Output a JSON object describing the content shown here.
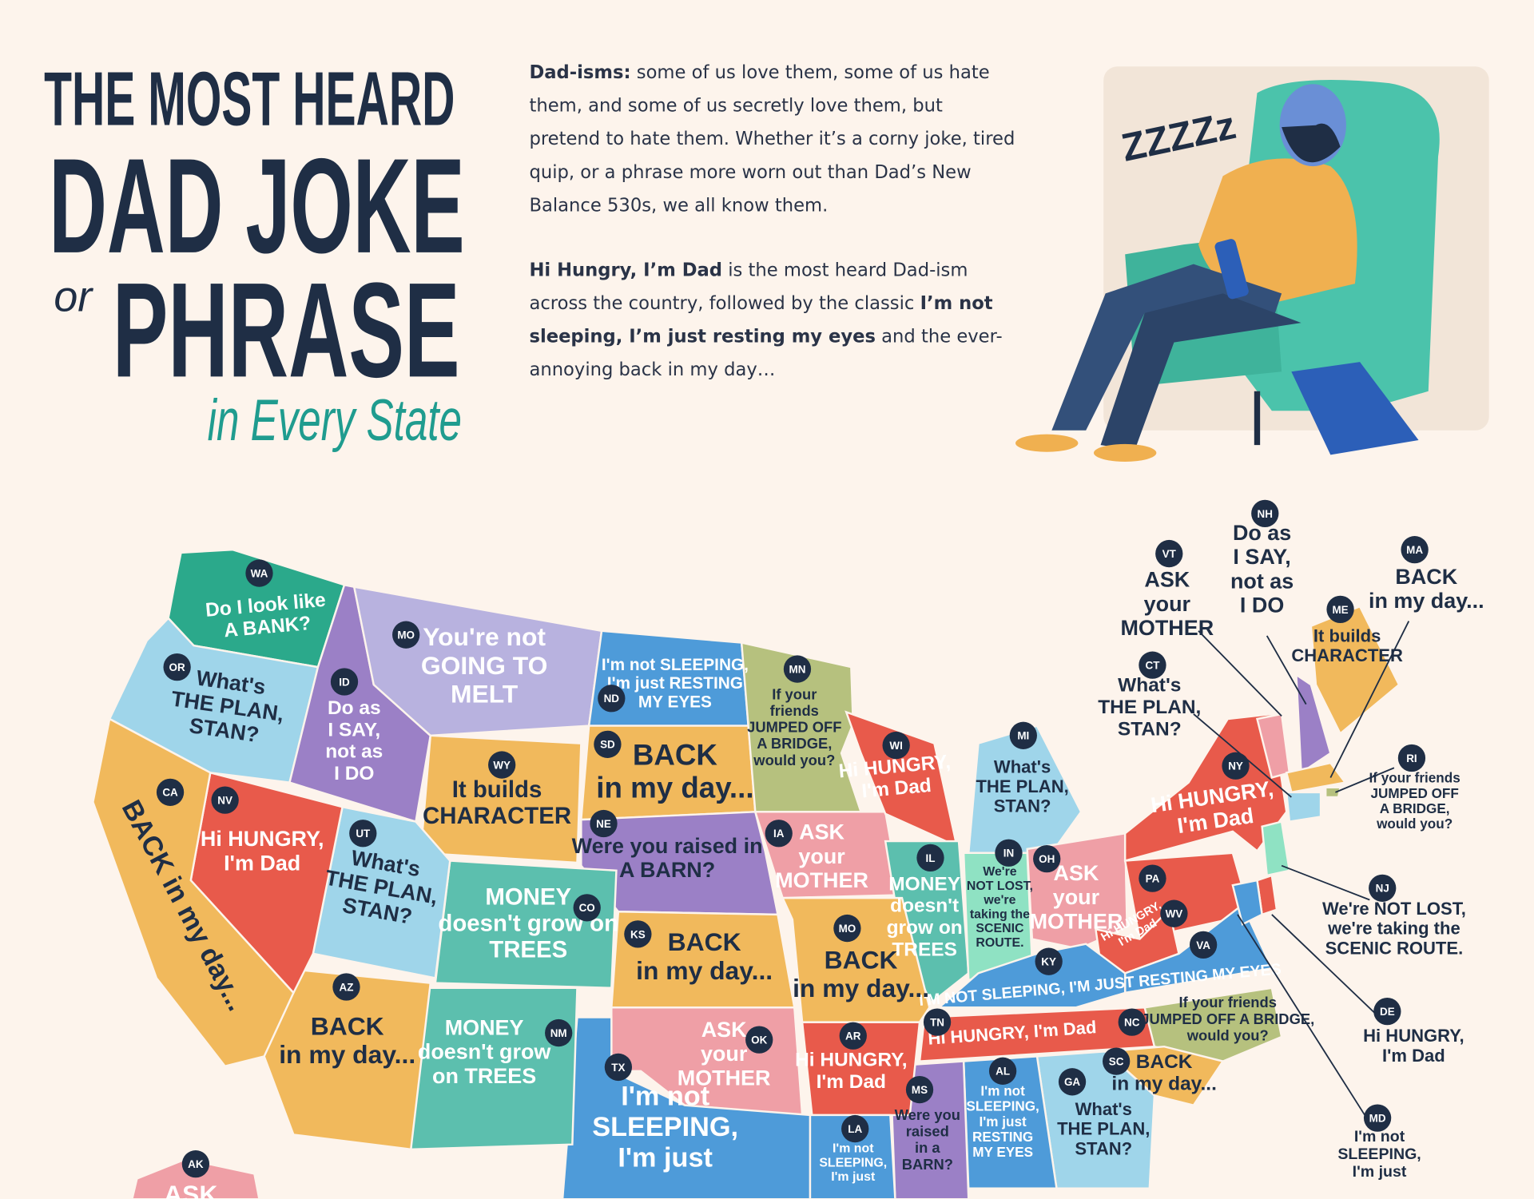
{
  "header": {
    "title": [
      "THE MOST HEARD",
      "DAD JOKE",
      "or",
      "PHRASE",
      "in Every State"
    ],
    "intro": [
      [
        {
          "bold": true,
          "text": "Dad-isms:"
        },
        {
          "bold": false,
          "text": " some of us love them, some of us hate them, and some of us secretly love them, but pretend to hate them. Whether it’s a corny joke, tired quip, or a phrase more worn out than Dad’s New Balance 530s, we all know them."
        }
      ],
      [
        {
          "bold": true,
          "text": "Hi Hungry, I’m Dad"
        },
        {
          "bold": false,
          "text": " is the most heard Dad-ism across the country, followed by the classic "
        },
        {
          "bold": true,
          "text": "I’m not sleeping, I’m just resting my eyes"
        },
        {
          "bold": false,
          "text": " and the ever-annoying back in my day…"
        }
      ]
    ]
  },
  "illustration": {
    "zzz": "ZZZZz"
  },
  "map": {
    "states": [
      {
        "abbr": "WA",
        "color": "#2ba98b",
        "lines": [
          "Do I look like",
          "A BANK?"
        ]
      },
      {
        "abbr": "OR",
        "color": "#9fd5ea",
        "lines": [
          "What's",
          "THE PLAN,",
          "STAN?"
        ]
      },
      {
        "abbr": "ID",
        "color": "#9b80c6",
        "lines": [
          "Do as",
          "I SAY,",
          "not as",
          "I DO"
        ]
      },
      {
        "abbr": "MO",
        "color": "#b8b2df",
        "lines": [
          "You're not",
          "GOING TO",
          "MELT"
        ]
      },
      {
        "abbr": "ND",
        "color": "#4e9bd9",
        "lines": [
          "I'm not SLEEPING,",
          "I'm just RESTING",
          "MY EYES"
        ]
      },
      {
        "abbr": "SD",
        "color": "#f1b95c",
        "lines": [
          "BACK",
          "in my day..."
        ]
      },
      {
        "abbr": "MN",
        "color": "#b6c17e",
        "lines": [
          "If your",
          "friends",
          "JUMPED OFF",
          "A BRIDGE,",
          "would you?"
        ]
      },
      {
        "abbr": "WY",
        "color": "#f1b95c",
        "lines": [
          "It builds",
          "CHARACTER"
        ]
      },
      {
        "abbr": "NE",
        "color": "#9b80c6",
        "lines": [
          "Were you raised in",
          "A BARN?"
        ]
      },
      {
        "abbr": "IA",
        "color": "#ef9fa6",
        "lines": [
          "ASK",
          "your",
          "MOTHER"
        ]
      },
      {
        "abbr": "WI",
        "color": "#e85a4b",
        "lines": [
          "Hi HUNGRY,",
          "I'm Dad"
        ]
      },
      {
        "abbr": "MI",
        "color": "#9fd5ea",
        "lines": [
          "What's",
          "THE PLAN,",
          "STAN?"
        ]
      },
      {
        "abbr": "IL",
        "color": "#5cbfae",
        "lines": [
          "MONEY",
          "doesn't",
          "grow on",
          "TREES"
        ]
      },
      {
        "abbr": "IN",
        "color": "#8fe2c3",
        "lines": [
          "We're",
          "NOT LOST,",
          "we're",
          "taking the",
          "SCENIC",
          "ROUTE."
        ]
      },
      {
        "abbr": "OH",
        "color": "#ef9fa6",
        "lines": [
          "ASK",
          "your",
          "MOTHER"
        ]
      },
      {
        "abbr": "NY",
        "color": "#e85a4b",
        "lines": [
          "Hi HUNGRY,",
          "I'm Dad"
        ]
      },
      {
        "abbr": "PA",
        "color": "#e85a4b",
        "lines": [
          "Hi HUNGRY,",
          "I'm Dad"
        ]
      },
      {
        "abbr": "WV",
        "color": "#e85a4b"
      },
      {
        "abbr": "VA",
        "color": "#4e9bd9"
      },
      {
        "abbr": "KY",
        "color": "#4e9bd9",
        "lines": [
          "I'M NOT SLEEPING, I'M JUST RESTING MY EYES"
        ]
      },
      {
        "abbr": "TN",
        "color": "#e85a4b",
        "lines": [
          "Hi HUNGRY, I'm Dad"
        ]
      },
      {
        "abbr": "NC",
        "color": "#b6c17e",
        "lines": [
          "If your friends",
          "JUMPED OFF A BRIDGE,",
          "would you?"
        ]
      },
      {
        "abbr": "SC",
        "color": "#f1b95c",
        "lines": [
          "BACK",
          "in my day..."
        ]
      },
      {
        "abbr": "GA",
        "color": "#9fd5ea",
        "lines": [
          "What's",
          "THE PLAN,",
          "STAN?"
        ]
      },
      {
        "abbr": "AL",
        "color": "#4e9bd9",
        "lines": [
          "I'm not",
          "SLEEPING,",
          "I'm just",
          "RESTING",
          "MY EYES"
        ]
      },
      {
        "abbr": "MS",
        "color": "#9b80c6",
        "lines": [
          "Were you",
          "raised",
          "in a",
          "BARN?"
        ]
      },
      {
        "abbr": "AR",
        "color": "#e85a4b",
        "lines": [
          "Hi HUNGRY,",
          "I'm Dad"
        ]
      },
      {
        "abbr": "LA",
        "color": "#4e9bd9",
        "lines": [
          "I'm not",
          "SLEEPING,",
          "I'm just"
        ]
      },
      {
        "abbr": "MO",
        "color": "#f1b95c",
        "lines": [
          "BACK",
          "in my day..."
        ]
      },
      {
        "abbr": "KS",
        "color": "#f1b95c",
        "lines": [
          "BACK",
          "in my day..."
        ]
      },
      {
        "abbr": "OK",
        "color": "#ef9fa6",
        "lines": [
          "ASK",
          "your",
          "MOTHER"
        ]
      },
      {
        "abbr": "TX",
        "color": "#4e9bd9",
        "lines": [
          "I'm not",
          "SLEEPING,",
          "I'm just"
        ]
      },
      {
        "abbr": "NM",
        "color": "#5cbfae",
        "lines": [
          "MONEY",
          "doesn't grow",
          "on TREES"
        ]
      },
      {
        "abbr": "CO",
        "color": "#5cbfae",
        "lines": [
          "MONEY",
          "doesn't grow on",
          "TREES"
        ]
      },
      {
        "abbr": "AZ",
        "color": "#f1b95c",
        "lines": [
          "BACK",
          "in my day..."
        ]
      },
      {
        "abbr": "UT",
        "color": "#9fd5ea",
        "lines": [
          "What's",
          "THE PLAN,",
          "STAN?"
        ]
      },
      {
        "abbr": "NV",
        "color": "#e85a4b",
        "lines": [
          "Hi HUNGRY,",
          "I'm Dad"
        ]
      },
      {
        "abbr": "CA",
        "color": "#f1b95c",
        "lines": [
          "BACK in my day..."
        ]
      },
      {
        "abbr": "AK",
        "color": "#ef9fa6",
        "lines": [
          "ASK"
        ]
      },
      {
        "abbr": "VT",
        "color": "#ef9fa6",
        "lines": [
          "ASK",
          "your",
          "MOTHER"
        ]
      },
      {
        "abbr": "NH",
        "color": "#9b80c6",
        "lines": [
          "Do as",
          "I SAY,",
          "not as",
          "I DO"
        ]
      },
      {
        "abbr": "MA",
        "color": "#f1b95c",
        "lines": [
          "BACK",
          "in my day..."
        ]
      },
      {
        "abbr": "ME",
        "color": "#f1b95c",
        "lines": [
          "It builds",
          "CHARACTER"
        ]
      },
      {
        "abbr": "CT",
        "color": "#9fd5ea",
        "lines": [
          "What's",
          "THE PLAN,",
          "STAN?"
        ]
      },
      {
        "abbr": "RI",
        "color": "#b6c17e",
        "lines": [
          "If your friends",
          "JUMPED OFF",
          "A BRIDGE,",
          "would you?"
        ]
      },
      {
        "abbr": "NJ",
        "color": "#8fe2c3",
        "lines": [
          "We're NOT LOST,",
          "we're taking the",
          "SCENIC ROUTE."
        ]
      },
      {
        "abbr": "DE",
        "color": "#e85a4b",
        "lines": [
          "Hi HUNGRY,",
          "I'm Dad"
        ]
      },
      {
        "abbr": "MD",
        "color": "#4e9bd9",
        "lines": [
          "I'm not",
          "SLEEPING,",
          "I'm just"
        ]
      }
    ]
  }
}
